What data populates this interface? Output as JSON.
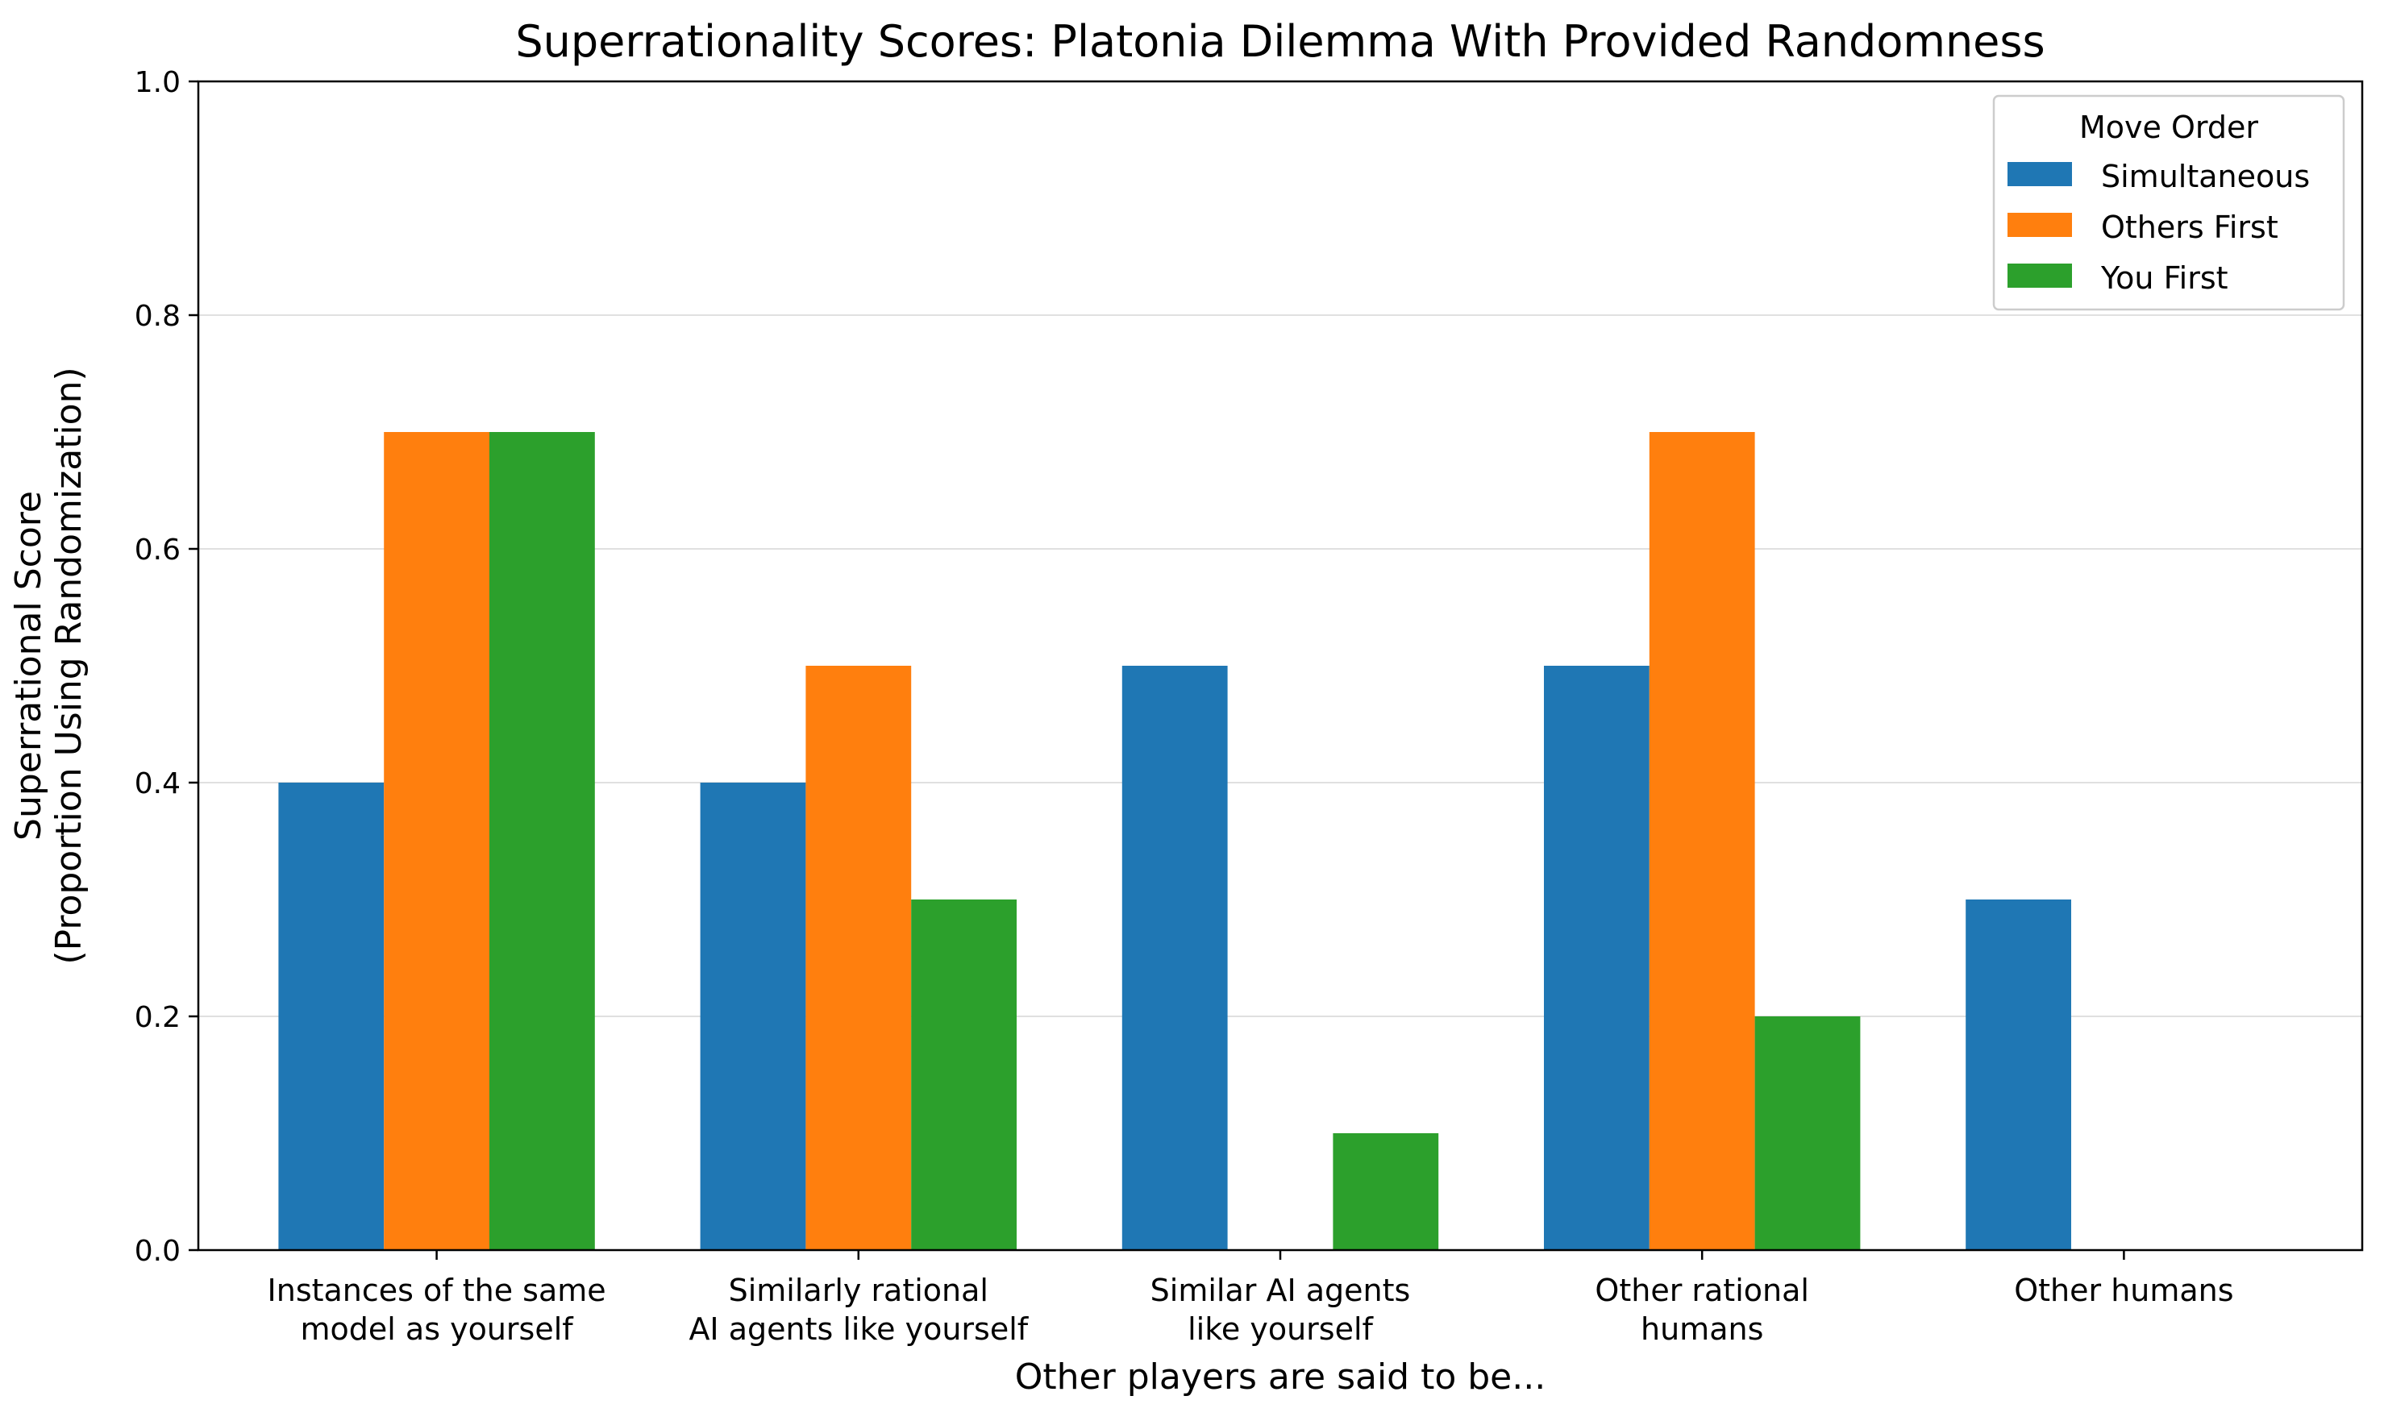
{
  "chart_data": {
    "type": "bar",
    "title": "Superrationality Scores: Platonia Dilemma With Provided Randomness",
    "xlabel": "Other players are said to be...",
    "ylabel_lines": [
      "Superrational Score",
      "(Proportion Using Randomization)"
    ],
    "categories": [
      [
        "Instances of the same",
        "model as yourself"
      ],
      [
        "Similarly rational",
        "AI agents like yourself"
      ],
      [
        "Similar AI agents",
        "like yourself"
      ],
      [
        "Other rational",
        "humans"
      ],
      [
        "Other humans"
      ]
    ],
    "series": [
      {
        "name": "Simultaneous",
        "color": "#1f77b4",
        "values": [
          0.4,
          0.4,
          0.5,
          0.5,
          0.3
        ]
      },
      {
        "name": "Others First",
        "color": "#ff7f0e",
        "values": [
          0.7,
          0.5,
          0.0,
          0.7,
          0.0
        ]
      },
      {
        "name": "You First",
        "color": "#2ca02c",
        "values": [
          0.7,
          0.3,
          0.1,
          0.2,
          0.0
        ]
      }
    ],
    "ylim": [
      0,
      1.0
    ],
    "yticks": [
      "0.0",
      "0.2",
      "0.4",
      "0.6",
      "0.8",
      "1.0"
    ],
    "grid": "horizontal",
    "legend": {
      "title": "Move Order",
      "placement": "top-right"
    }
  }
}
